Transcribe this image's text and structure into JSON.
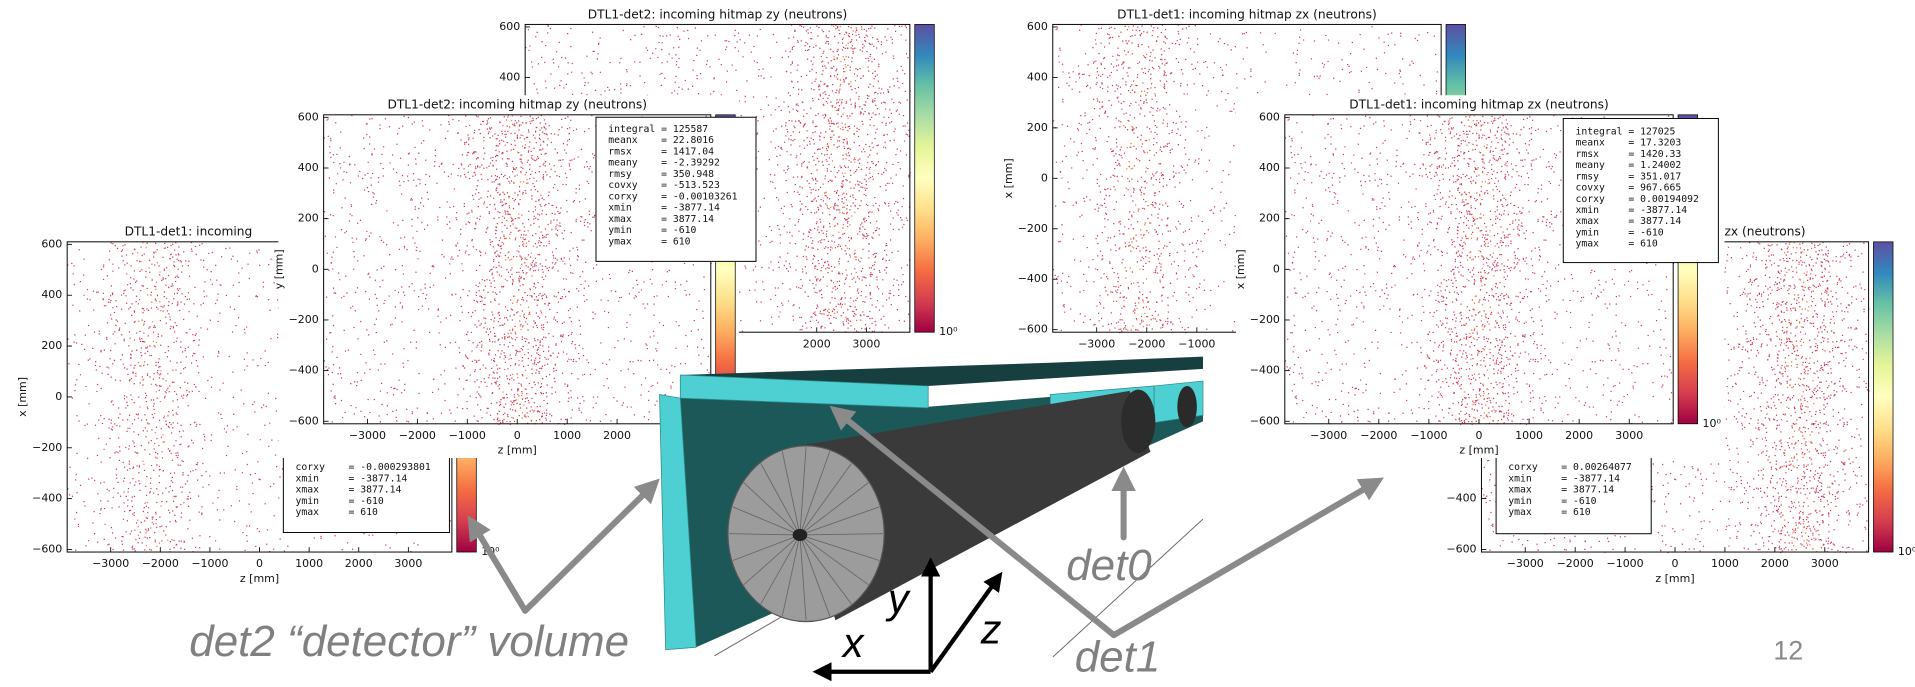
{
  "plots": [
    {
      "title": "DTL1-det2: incoming hitmap zy (neutrons)",
      "xlim": [
        -3877.14,
        3877.14
      ],
      "ylim": [
        -610,
        610
      ],
      "xticks": [
        2000,
        3000
      ],
      "yticks": [
        600,
        400
      ],
      "cbar_label": "10⁰"
    },
    {
      "title": "DTL1-det1: incoming hitmap zx (neutrons)",
      "ylabel": "x [mm]",
      "xlim": [
        -3877.14,
        3877.14
      ],
      "ylim": [
        -610,
        610
      ],
      "xticks": [
        {
          "value": -3000,
          "label": "−3000"
        },
        {
          "value": -2000,
          "label": "−2000"
        },
        {
          "value": -1000,
          "label": "−1000"
        }
      ],
      "yticks": [
        600,
        400,
        200,
        0,
        {
          "value": -200,
          "label": "−200"
        },
        {
          "value": -400,
          "label": "−400"
        },
        {
          "value": -600,
          "label": "−600"
        }
      ]
    },
    {
      "title": "DTL1-det1: incoming",
      "xlabel": "z [mm]",
      "ylabel": "x [mm]",
      "xlim": [
        -3877.14,
        3877.14
      ],
      "ylim": [
        -610,
        610
      ],
      "xticks": [
        {
          "value": -3000,
          "label": "−3000"
        },
        {
          "value": -2000,
          "label": "−2000"
        },
        {
          "value": -1000,
          "label": "−1000"
        },
        0,
        1000,
        2000,
        3000
      ],
      "yticks": [
        600,
        400,
        200,
        0,
        {
          "value": -200,
          "label": "−200"
        },
        {
          "value": -400,
          "label": "−400"
        },
        {
          "value": -600,
          "label": "−600"
        }
      ],
      "cbar_label": "10⁰",
      "stats": [
        "corxy    = -0.000293801",
        "xmin     = -3877.14",
        "xmax     = 3877.14",
        "ymin     = -610",
        "ymax     = 610"
      ]
    },
    {
      "title": "zx (neutrons)",
      "xlabel": "z [mm]",
      "xlim": [
        -3877.14,
        3877.14
      ],
      "ylim": [
        -610,
        610
      ],
      "xticks": [
        {
          "value": -3000,
          "label": "−3000"
        },
        {
          "value": -2000,
          "label": "−2000"
        },
        {
          "value": -1000,
          "label": "−1000"
        },
        0,
        1000,
        2000,
        3000
      ],
      "yticks": [
        {
          "value": -400,
          "label": "−400"
        },
        {
          "value": -600,
          "label": "−600"
        }
      ],
      "cbar_label": "10⁰",
      "stats": [
        "corxy    = 0.00264077",
        "xmin     = -3877.14",
        "xmax     = 3877.14",
        "ymin     = -610",
        "ymax     = 610"
      ]
    },
    {
      "title": "DTL1-det2: incoming hitmap zy (neutrons)",
      "xlabel": "z [mm]",
      "ylabel": "y [mm]",
      "xlim": [
        -3877.14,
        3877.14
      ],
      "ylim": [
        -610,
        610
      ],
      "xticks": [
        {
          "value": -3000,
          "label": "−3000"
        },
        {
          "value": -2000,
          "label": "−2000"
        },
        {
          "value": -1000,
          "label": "−1000"
        },
        0,
        1000,
        2000
      ],
      "yticks": [
        600,
        400,
        200,
        0,
        {
          "value": -200,
          "label": "−200"
        },
        {
          "value": -400,
          "label": "−400"
        },
        {
          "value": -600,
          "label": "−600"
        }
      ],
      "stats": [
        "integral = 125587",
        "meanx    = 22.8016",
        "rmsx     = 1417.04",
        "meany    = -2.39292",
        "rmsy     = 350.948",
        "covxy    = -513.523",
        "corxy    = -0.00103261",
        "xmin     = -3877.14",
        "xmax     = 3877.14",
        "ymin     = -610",
        "ymax     = 610"
      ]
    },
    {
      "title": "DTL1-det1: incoming hitmap zx (neutrons)",
      "xlabel": "z [mm]",
      "ylabel": "x [mm]",
      "xlim": [
        -3877.14,
        3877.14
      ],
      "ylim": [
        -610,
        610
      ],
      "xticks": [
        {
          "value": -3000,
          "label": "−3000"
        },
        {
          "value": -2000,
          "label": "−2000"
        },
        {
          "value": -1000,
          "label": "−1000"
        },
        0,
        1000,
        2000,
        3000
      ],
      "yticks": [
        600,
        400,
        200,
        0,
        {
          "value": -200,
          "label": "−200"
        },
        {
          "value": -400,
          "label": "−400"
        },
        {
          "value": -600,
          "label": "−600"
        }
      ],
      "cbar_label": "10⁰",
      "stats": [
        "integral = 127025",
        "meanx    = 17.3203",
        "rmsx     = 1420.33",
        "meany    = 1.24002",
        "rmsy     = 351.017",
        "covxy    = 967.665",
        "corxy    = 0.00194092",
        "xmin     = -3877.14",
        "xmax     = 3877.14",
        "ymin     = -610",
        "ymax     = 610"
      ]
    }
  ],
  "annotations": {
    "det2": "det2 “detector” volume",
    "det1": "det1",
    "det0": "det0",
    "x": "x",
    "y": "y",
    "z": "z"
  },
  "page_number": "12"
}
